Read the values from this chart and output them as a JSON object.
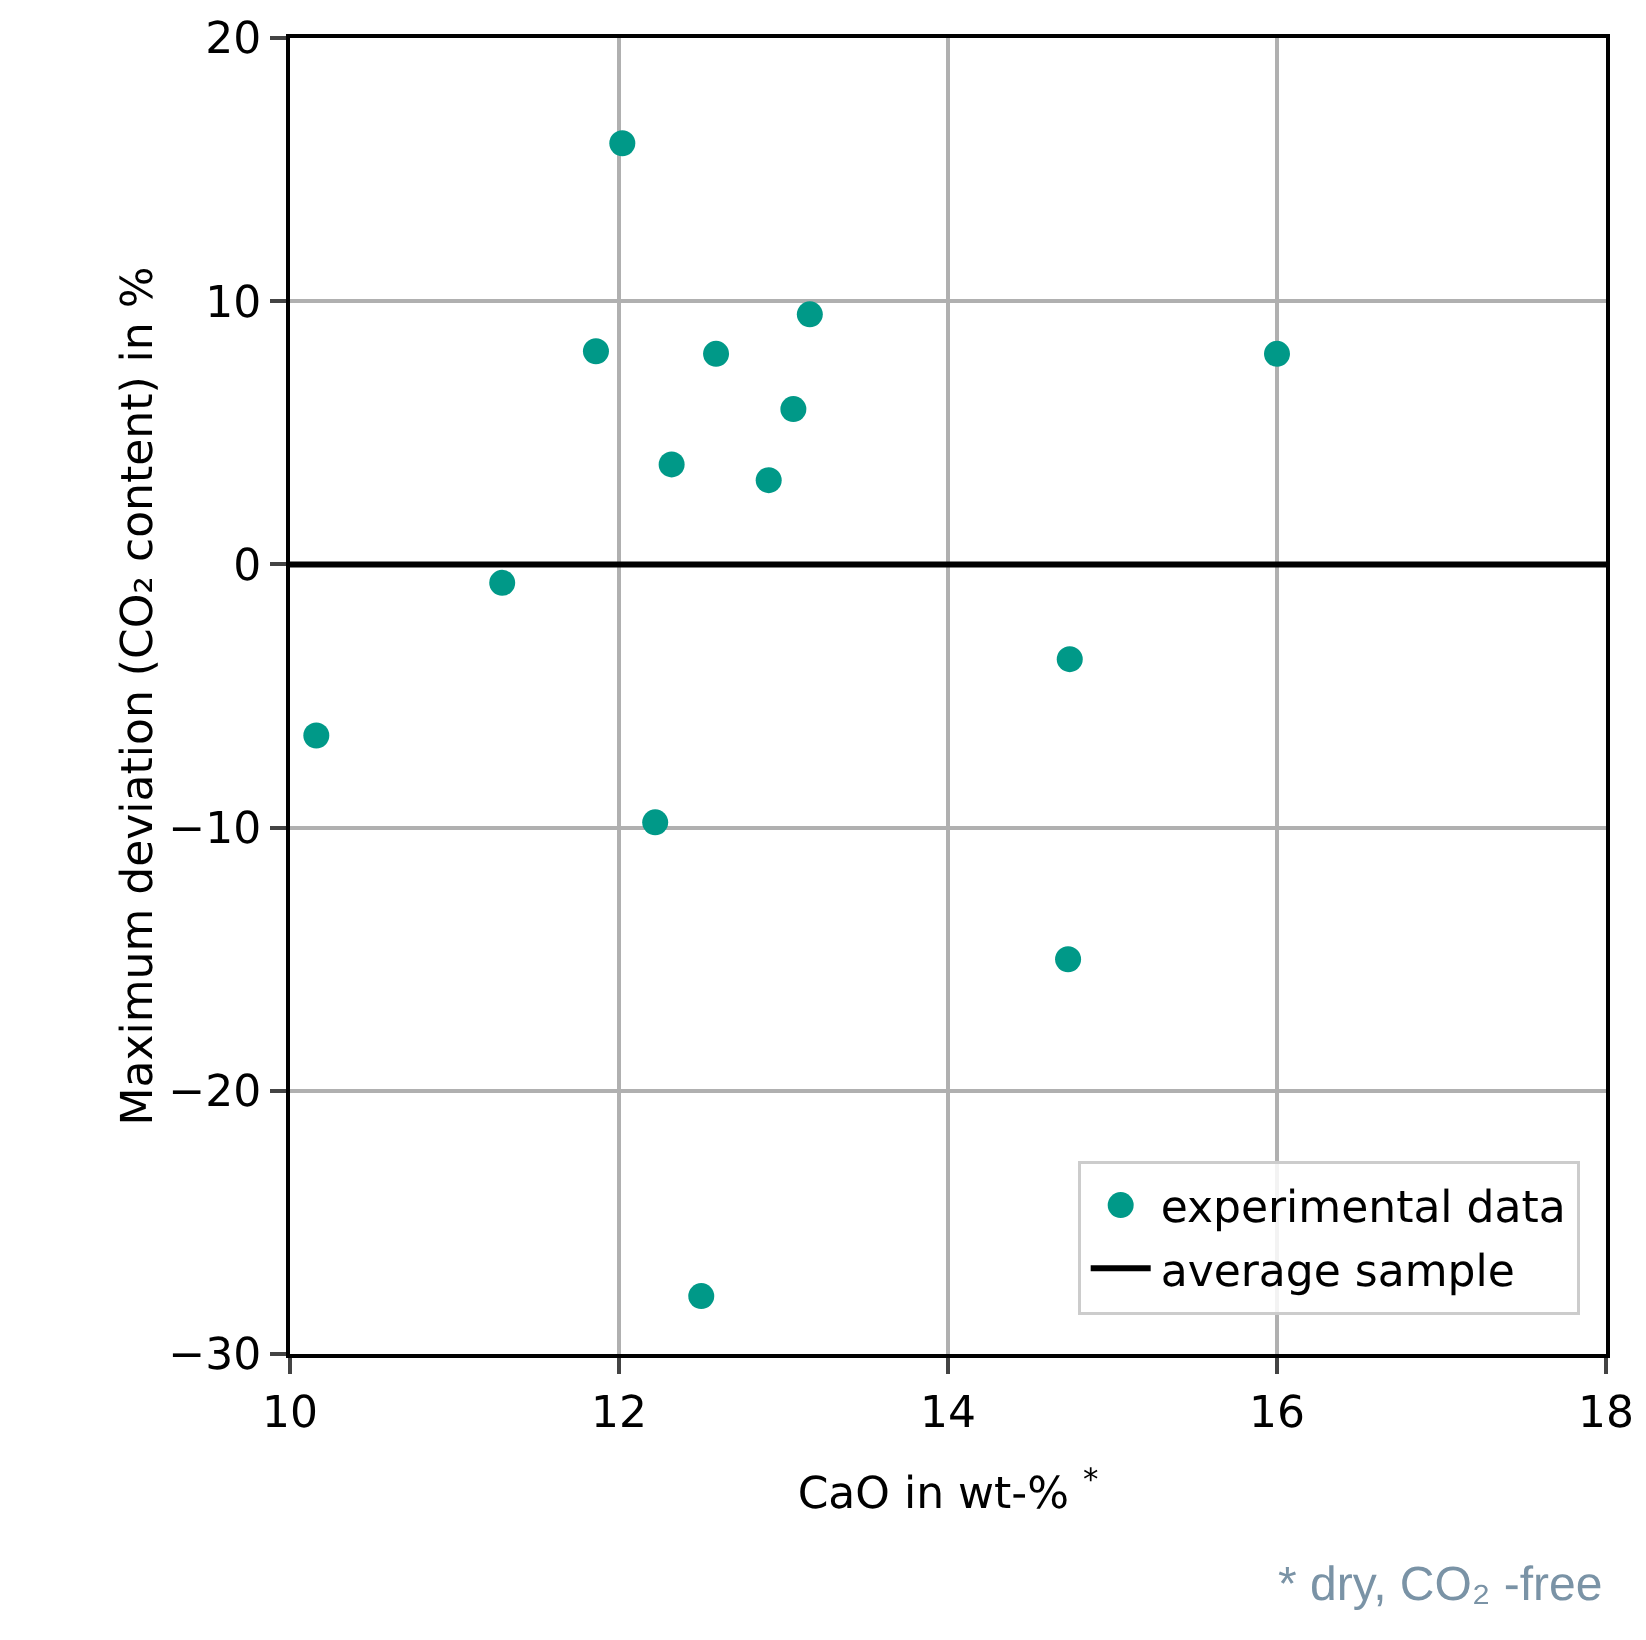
{
  "chart_data": {
    "type": "scatter",
    "xlabel": "CaO in wt-% $^{*}$",
    "ylabel": "Maximum deviation (CO₂ content) in %",
    "series": [
      {
        "name": "experimental data",
        "color": "#009988",
        "marker": "circle",
        "x": [
          12.02,
          11.86,
          12.59,
          13.16,
          13.06,
          12.32,
          12.91,
          16.0,
          11.29,
          10.16,
          12.22,
          14.74,
          14.73,
          12.5
        ],
        "values": [
          16.0,
          8.1,
          8.0,
          9.5,
          5.9,
          3.8,
          3.2,
          8.0,
          -0.7,
          -6.5,
          -9.8,
          -3.6,
          -15.0,
          -27.8
        ]
      },
      {
        "name": "average sample",
        "type": "line",
        "color": "#000000",
        "x": [
          10,
          18
        ],
        "values": [
          0,
          0
        ]
      }
    ],
    "xlim": [
      10,
      18
    ],
    "xticks": [
      10,
      12,
      14,
      16,
      18
    ],
    "ylim": [
      -30,
      20
    ],
    "yticks": [
      -30,
      -20,
      -10,
      0,
      10,
      20
    ],
    "grid": true,
    "legend": "bottom right",
    "annotations": [
      "* dry, CO₂ -free"
    ]
  }
}
